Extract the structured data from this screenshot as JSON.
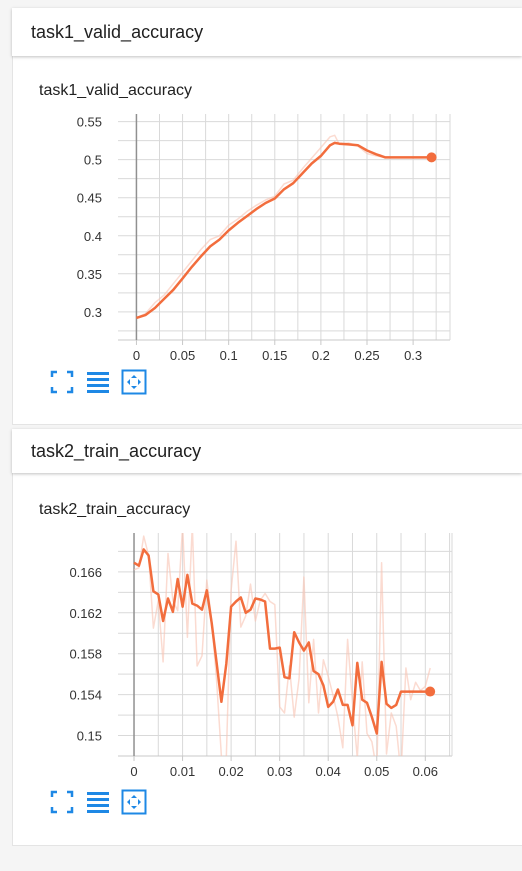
{
  "charts": [
    {
      "header": "task1_valid_accuracy",
      "title": "task1_valid_accuracy"
    },
    {
      "header": "task2_train_accuracy",
      "title": "task2_train_accuracy"
    }
  ],
  "toolbar": {
    "icons": [
      "fullscreen-icon",
      "list-icon",
      "fit-domain-icon"
    ]
  },
  "colors": {
    "line": "#f26d3d",
    "line_raw": "#f9c3b3",
    "grid": "#d9d9d9",
    "axis_zero": "#909090",
    "icon": "#1e88e5"
  },
  "chart_data": [
    {
      "type": "line",
      "title": "task1_valid_accuracy",
      "xlabel": "",
      "ylabel": "",
      "xlim": [
        -0.02,
        0.34
      ],
      "ylim": [
        0.263,
        0.56
      ],
      "xticks": [
        0,
        0.05,
        0.1,
        0.15,
        0.2,
        0.25,
        0.3
      ],
      "xtick_labels": [
        "0",
        "0.05",
        "0.1",
        "0.15",
        "0.2",
        "0.25",
        "0.3"
      ],
      "yticks": [
        0.3,
        0.35,
        0.4,
        0.45,
        0.5,
        0.55
      ],
      "ytick_labels": [
        "0.3",
        "0.35",
        "0.4",
        "0.45",
        "0.5",
        "0.55"
      ],
      "grid": true,
      "series": [
        {
          "role": "raw",
          "x": [
            0,
            0.01,
            0.02,
            0.03,
            0.04,
            0.05,
            0.06,
            0.07,
            0.08,
            0.09,
            0.1,
            0.11,
            0.12,
            0.13,
            0.14,
            0.15,
            0.16,
            0.17,
            0.18,
            0.19,
            0.2,
            0.21,
            0.215,
            0.22,
            0.23,
            0.24,
            0.25,
            0.26,
            0.27,
            0.28,
            0.29,
            0.3,
            0.31,
            0.32
          ],
          "y": [
            0.292,
            0.298,
            0.312,
            0.322,
            0.337,
            0.352,
            0.367,
            0.382,
            0.395,
            0.4,
            0.414,
            0.422,
            0.432,
            0.44,
            0.447,
            0.452,
            0.468,
            0.473,
            0.488,
            0.502,
            0.516,
            0.53,
            0.532,
            0.52,
            0.522,
            0.518,
            0.508,
            0.505,
            0.503,
            0.503,
            0.503,
            0.503,
            0.503,
            0.503
          ]
        },
        {
          "role": "smoothed",
          "x": [
            0,
            0.01,
            0.02,
            0.03,
            0.04,
            0.05,
            0.06,
            0.07,
            0.08,
            0.09,
            0.1,
            0.11,
            0.12,
            0.13,
            0.14,
            0.15,
            0.16,
            0.17,
            0.18,
            0.19,
            0.2,
            0.21,
            0.215,
            0.22,
            0.23,
            0.24,
            0.25,
            0.26,
            0.27,
            0.28,
            0.29,
            0.3,
            0.31,
            0.32
          ],
          "y": [
            0.292,
            0.296,
            0.305,
            0.317,
            0.329,
            0.344,
            0.359,
            0.373,
            0.386,
            0.395,
            0.407,
            0.417,
            0.426,
            0.435,
            0.443,
            0.449,
            0.461,
            0.469,
            0.482,
            0.495,
            0.505,
            0.519,
            0.522,
            0.521,
            0.52,
            0.519,
            0.512,
            0.507,
            0.503,
            0.503,
            0.503,
            0.503,
            0.503,
            0.503
          ]
        }
      ],
      "last_point": {
        "x": 0.32,
        "y": 0.503
      }
    },
    {
      "type": "line",
      "title": "task2_train_accuracy",
      "xlabel": "",
      "ylabel": "",
      "xlim": [
        -0.0033,
        0.0655
      ],
      "ylim": [
        0.148,
        0.1698
      ],
      "xticks": [
        0,
        0.01,
        0.02,
        0.03,
        0.04,
        0.05,
        0.06
      ],
      "xtick_labels": [
        "0",
        "0.01",
        "0.02",
        "0.03",
        "0.04",
        "0.05",
        "0.06"
      ],
      "yticks": [
        0.15,
        0.154,
        0.158,
        0.162,
        0.166
      ],
      "ytick_labels": [
        "0.15",
        "0.154",
        "0.158",
        "0.162",
        "0.166"
      ],
      "grid": true,
      "series": [
        {
          "role": "raw",
          "x": [
            0,
            0.001,
            0.002,
            0.003,
            0.004,
            0.005,
            0.006,
            0.007,
            0.008,
            0.009,
            0.01,
            0.011,
            0.012,
            0.013,
            0.014,
            0.015,
            0.016,
            0.017,
            0.018,
            0.019,
            0.02,
            0.021,
            0.022,
            0.023,
            0.024,
            0.025,
            0.026,
            0.027,
            0.028,
            0.029,
            0.03,
            0.031,
            0.032,
            0.033,
            0.034,
            0.035,
            0.036,
            0.037,
            0.038,
            0.039,
            0.04,
            0.041,
            0.042,
            0.043,
            0.044,
            0.045,
            0.046,
            0.047,
            0.048,
            0.049,
            0.05,
            0.051,
            0.052,
            0.053,
            0.054,
            0.055,
            0.056,
            0.057,
            0.058,
            0.059,
            0.06,
            0.061
          ],
          "y": [
            0.1662,
            0.1664,
            0.1695,
            0.1676,
            0.1605,
            0.1632,
            0.1572,
            0.1678,
            0.1632,
            0.1622,
            0.1705,
            0.1596,
            0.1705,
            0.1568,
            0.1578,
            0.1652,
            0.1612,
            0.1555,
            0.148,
            0.1478,
            0.1642,
            0.169,
            0.1606,
            0.1617,
            0.1648,
            0.1612,
            0.1632,
            0.1639,
            0.1631,
            0.1628,
            0.1528,
            0.1522,
            0.1568,
            0.1518,
            0.1556,
            0.1655,
            0.1532,
            0.1594,
            0.1522,
            0.1574,
            0.1558,
            0.1539,
            0.1518,
            0.1488,
            0.1594,
            0.1532,
            0.1478,
            0.1572,
            0.1502,
            0.1494,
            0.1465,
            0.1669,
            0.1482,
            0.1522,
            0.1509,
            0.1462,
            0.1566,
            0.1535,
            0.1552,
            0.1544,
            0.1548,
            0.1566
          ]
        },
        {
          "role": "smoothed",
          "x": [
            0,
            0.001,
            0.002,
            0.003,
            0.004,
            0.005,
            0.006,
            0.007,
            0.008,
            0.009,
            0.01,
            0.011,
            0.012,
            0.013,
            0.014,
            0.015,
            0.016,
            0.017,
            0.018,
            0.019,
            0.02,
            0.021,
            0.022,
            0.023,
            0.024,
            0.025,
            0.026,
            0.027,
            0.028,
            0.029,
            0.03,
            0.031,
            0.032,
            0.033,
            0.034,
            0.035,
            0.036,
            0.037,
            0.038,
            0.039,
            0.04,
            0.041,
            0.042,
            0.043,
            0.044,
            0.045,
            0.046,
            0.047,
            0.048,
            0.049,
            0.05,
            0.051,
            0.052,
            0.053,
            0.054,
            0.055,
            0.056,
            0.057,
            0.058,
            0.059,
            0.06,
            0.061
          ],
          "y": [
            0.1669,
            0.1666,
            0.1682,
            0.1676,
            0.1641,
            0.1638,
            0.1612,
            0.1634,
            0.1621,
            0.1653,
            0.1626,
            0.1657,
            0.1629,
            0.1627,
            0.1623,
            0.1642,
            0.161,
            0.1572,
            0.1533,
            0.157,
            0.1626,
            0.1631,
            0.1635,
            0.162,
            0.1623,
            0.1634,
            0.1633,
            0.1631,
            0.1585,
            0.1585,
            0.1586,
            0.1557,
            0.1556,
            0.1601,
            0.1591,
            0.1583,
            0.1591,
            0.1563,
            0.156,
            0.1549,
            0.1528,
            0.1533,
            0.1545,
            0.153,
            0.153,
            0.151,
            0.1571,
            0.1535,
            0.1532,
            0.1518,
            0.1502,
            0.1572,
            0.1531,
            0.1527,
            0.153,
            0.1543,
            0.1543,
            0.1543,
            0.1543,
            0.1543,
            0.1543,
            0.1543
          ]
        }
      ],
      "last_point": {
        "x": 0.061,
        "y": 0.1543
      }
    }
  ]
}
